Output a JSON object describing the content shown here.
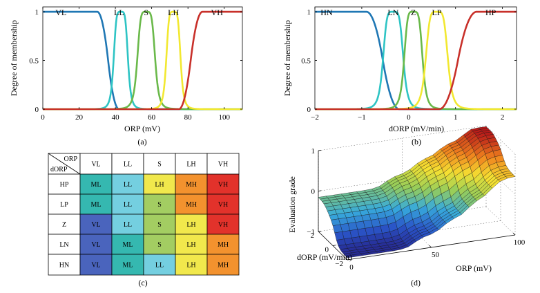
{
  "chart_data": [
    {
      "id": "a",
      "type": "line",
      "caption": "(a)",
      "xlabel": "ORP (mV)",
      "ylabel": "Degree of membership",
      "xlim": [
        0,
        110
      ],
      "ylim": [
        0,
        1.05
      ],
      "xticks": [
        0,
        20,
        40,
        60,
        80,
        100
      ],
      "yticks": [
        0,
        0.5,
        1
      ],
      "sets": [
        {
          "name": "VL",
          "shape": "zmf",
          "params": [
            30,
            42
          ],
          "color": "#1f77b4"
        },
        {
          "name": "LL",
          "shape": "gbell",
          "params": [
            4,
            2.5,
            43
          ],
          "color": "#2ec4c4"
        },
        {
          "name": "S",
          "shape": "gbell",
          "params": [
            5,
            2.5,
            57
          ],
          "color": "#6ab94a"
        },
        {
          "name": "LH",
          "shape": "gbell",
          "params": [
            4,
            2.5,
            72
          ],
          "color": "#f2e830"
        },
        {
          "name": "VH",
          "shape": "smf",
          "params": [
            75,
            88
          ],
          "color": "#c8302a"
        }
      ],
      "set_labels": [
        {
          "text": "VL",
          "x": 10
        },
        {
          "text": "LL",
          "x": 42
        },
        {
          "text": "S",
          "x": 57
        },
        {
          "text": "LH",
          "x": 72
        },
        {
          "text": "VH",
          "x": 96
        }
      ]
    },
    {
      "id": "b",
      "type": "line",
      "caption": "(b)",
      "xlabel": "dORP (mV/min)",
      "ylabel": "Degree of membership",
      "xlim": [
        -2,
        2.3
      ],
      "ylim": [
        0,
        1.05
      ],
      "xticks": [
        -2,
        -1,
        0,
        1,
        2
      ],
      "yticks": [
        0,
        0.5,
        1
      ],
      "sets": [
        {
          "name": "HN",
          "shape": "zmf",
          "params": [
            -0.9,
            -0.2
          ],
          "color": "#1f77b4"
        },
        {
          "name": "LN",
          "shape": "gbell",
          "params": [
            0.22,
            2.5,
            -0.33
          ],
          "color": "#2ec4c4"
        },
        {
          "name": "Z",
          "shape": "gbell",
          "params": [
            0.2,
            2.5,
            0.1
          ],
          "color": "#6ab94a"
        },
        {
          "name": "LP",
          "shape": "gbell",
          "params": [
            0.24,
            2.5,
            0.6
          ],
          "color": "#f2e830"
        },
        {
          "name": "HP",
          "shape": "smf",
          "params": [
            0.65,
            1.45
          ],
          "color": "#c8302a"
        }
      ],
      "set_labels": [
        {
          "text": "HN",
          "x": -1.75
        },
        {
          "text": "LN",
          "x": -0.33
        },
        {
          "text": "Z",
          "x": 0.1
        },
        {
          "text": "LP",
          "x": 0.6
        },
        {
          "text": "HP",
          "x": 1.75
        }
      ]
    },
    {
      "id": "c",
      "type": "table",
      "caption": "(c)",
      "corner_top": "ORP",
      "corner_bottom": "dORP",
      "columns": [
        "VL",
        "LL",
        "S",
        "LH",
        "VH"
      ],
      "rows": [
        {
          "label": "HP",
          "cells": [
            "ML",
            "LL",
            "LH",
            "MH",
            "VH"
          ]
        },
        {
          "label": "LP",
          "cells": [
            "ML",
            "LL",
            "S",
            "MH",
            "VH"
          ]
        },
        {
          "label": "Z",
          "cells": [
            "VL",
            "LL",
            "S",
            "LH",
            "VH"
          ]
        },
        {
          "label": "LN",
          "cells": [
            "VL",
            "ML",
            "S",
            "LH",
            "MH"
          ]
        },
        {
          "label": "HN",
          "cells": [
            "VL",
            "ML",
            "LL",
            "LH",
            "MH"
          ]
        }
      ],
      "grade_colors": {
        "VL": "#4a64bd",
        "ML": "#35b8b0",
        "LL": "#74cfe0",
        "S": "#a3cd62",
        "LH": "#f1e84c",
        "MH": "#f3922e",
        "VH": "#e2322b"
      }
    },
    {
      "id": "d",
      "type": "surface",
      "caption": "(d)",
      "xlabel": "ORP (mV)",
      "ylabel": "dORP (mV/min)",
      "zlabel": "Evaluation grade",
      "xlim": [
        0,
        100
      ],
      "ylim": [
        -2,
        2
      ],
      "zlim": [
        -1,
        1
      ],
      "xticks": [
        0,
        50,
        100
      ],
      "yticks": [
        -2,
        0,
        2
      ],
      "zticks": [
        -1,
        0,
        1
      ]
    }
  ]
}
